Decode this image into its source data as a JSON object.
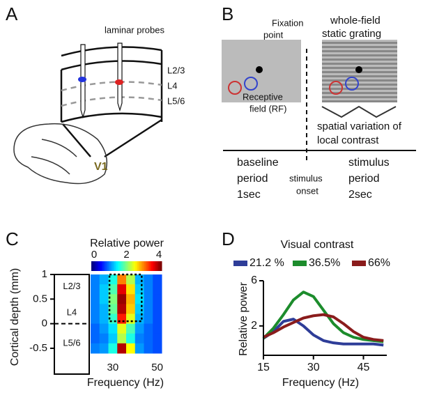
{
  "panels": {
    "A": {
      "label": "A",
      "title": "laminar probes",
      "layers": [
        "L2/3",
        "L4",
        "L5/6"
      ],
      "area": "V1"
    },
    "B": {
      "label": "B",
      "fixation": [
        "Fixation",
        "point"
      ],
      "grating": [
        "whole-field",
        "static grating"
      ],
      "rf": [
        "Receptive",
        "field (RF)"
      ],
      "contrast": [
        "spatial variation of",
        "local contrast"
      ],
      "baseline": [
        "baseline",
        "period",
        "1sec"
      ],
      "onset": [
        "stimulus",
        "onset"
      ],
      "stimulus": [
        "stimulus",
        "period",
        "2sec"
      ]
    },
    "C": {
      "label": "C"
    },
    "D": {
      "label": "D"
    }
  },
  "chart_data": [
    {
      "type": "heatmap",
      "title": "Relative power",
      "clim": [
        0,
        4
      ],
      "cticks": [
        0,
        2,
        4
      ],
      "ylabel": "Cortical depth (mm)",
      "xlabel": "Frequency (Hz)",
      "layers": [
        "L2/3",
        "L4",
        "L5/6"
      ],
      "xlim": [
        20,
        52
      ],
      "xticks": [
        30,
        50
      ],
      "ylim": [
        -0.6,
        1
      ],
      "yticks": [
        -0.5,
        0,
        0.5,
        1
      ],
      "x": [
        22,
        26,
        30,
        34,
        38,
        42,
        46,
        50
      ],
      "y": [
        0.9,
        0.7,
        0.5,
        0.3,
        0.1,
        -0.1,
        -0.3,
        -0.5
      ],
      "roi": {
        "x": [
          28.5,
          43
        ],
        "y": [
          0.05,
          1
        ]
      },
      "values": [
        [
          1.0,
          1.2,
          1.6,
          3.0,
          2.2,
          1.2,
          1.0,
          0.8
        ],
        [
          1.0,
          1.3,
          1.8,
          3.6,
          2.6,
          1.3,
          1.0,
          0.8
        ],
        [
          1.0,
          1.3,
          2.0,
          3.9,
          2.8,
          1.4,
          1.0,
          0.8
        ],
        [
          1.0,
          1.2,
          1.9,
          3.8,
          2.7,
          1.3,
          1.0,
          0.8
        ],
        [
          1.0,
          1.2,
          1.7,
          3.4,
          2.4,
          1.2,
          1.0,
          0.8
        ],
        [
          0.9,
          1.1,
          1.4,
          2.4,
          1.8,
          1.1,
          0.9,
          0.8
        ],
        [
          0.9,
          1.0,
          1.3,
          2.2,
          1.6,
          1.0,
          0.9,
          0.8
        ],
        [
          1.0,
          1.1,
          1.6,
          3.8,
          2.5,
          1.1,
          0.9,
          0.8
        ]
      ]
    },
    {
      "type": "line",
      "title": "Visual contrast",
      "xlabel": "Frequency (Hz)",
      "ylabel": "Relative power",
      "xlim": [
        15,
        52
      ],
      "xticks": [
        15,
        30,
        45
      ],
      "ylim": [
        -0.6,
        6
      ],
      "yticks": [
        2,
        6
      ],
      "x": [
        15,
        18,
        21,
        24,
        27,
        30,
        33,
        36,
        39,
        42,
        45,
        48,
        51
      ],
      "series": [
        {
          "name": "21.2 %",
          "color": "#2e3d98",
          "values": [
            0.9,
            1.5,
            2.4,
            2.6,
            2.0,
            1.2,
            0.7,
            0.5,
            0.4,
            0.4,
            0.4,
            0.4,
            0.3
          ]
        },
        {
          "name": "36.5%",
          "color": "#1c8c2c",
          "values": [
            0.9,
            1.8,
            3.0,
            4.3,
            5.0,
            4.6,
            3.4,
            2.2,
            1.4,
            1.0,
            0.8,
            0.7,
            0.6
          ]
        },
        {
          "name": "66%",
          "color": "#8a1c1c",
          "values": [
            1.0,
            1.4,
            1.9,
            2.3,
            2.7,
            2.9,
            3.0,
            2.8,
            2.2,
            1.5,
            1.0,
            0.8,
            0.7
          ]
        }
      ]
    }
  ]
}
